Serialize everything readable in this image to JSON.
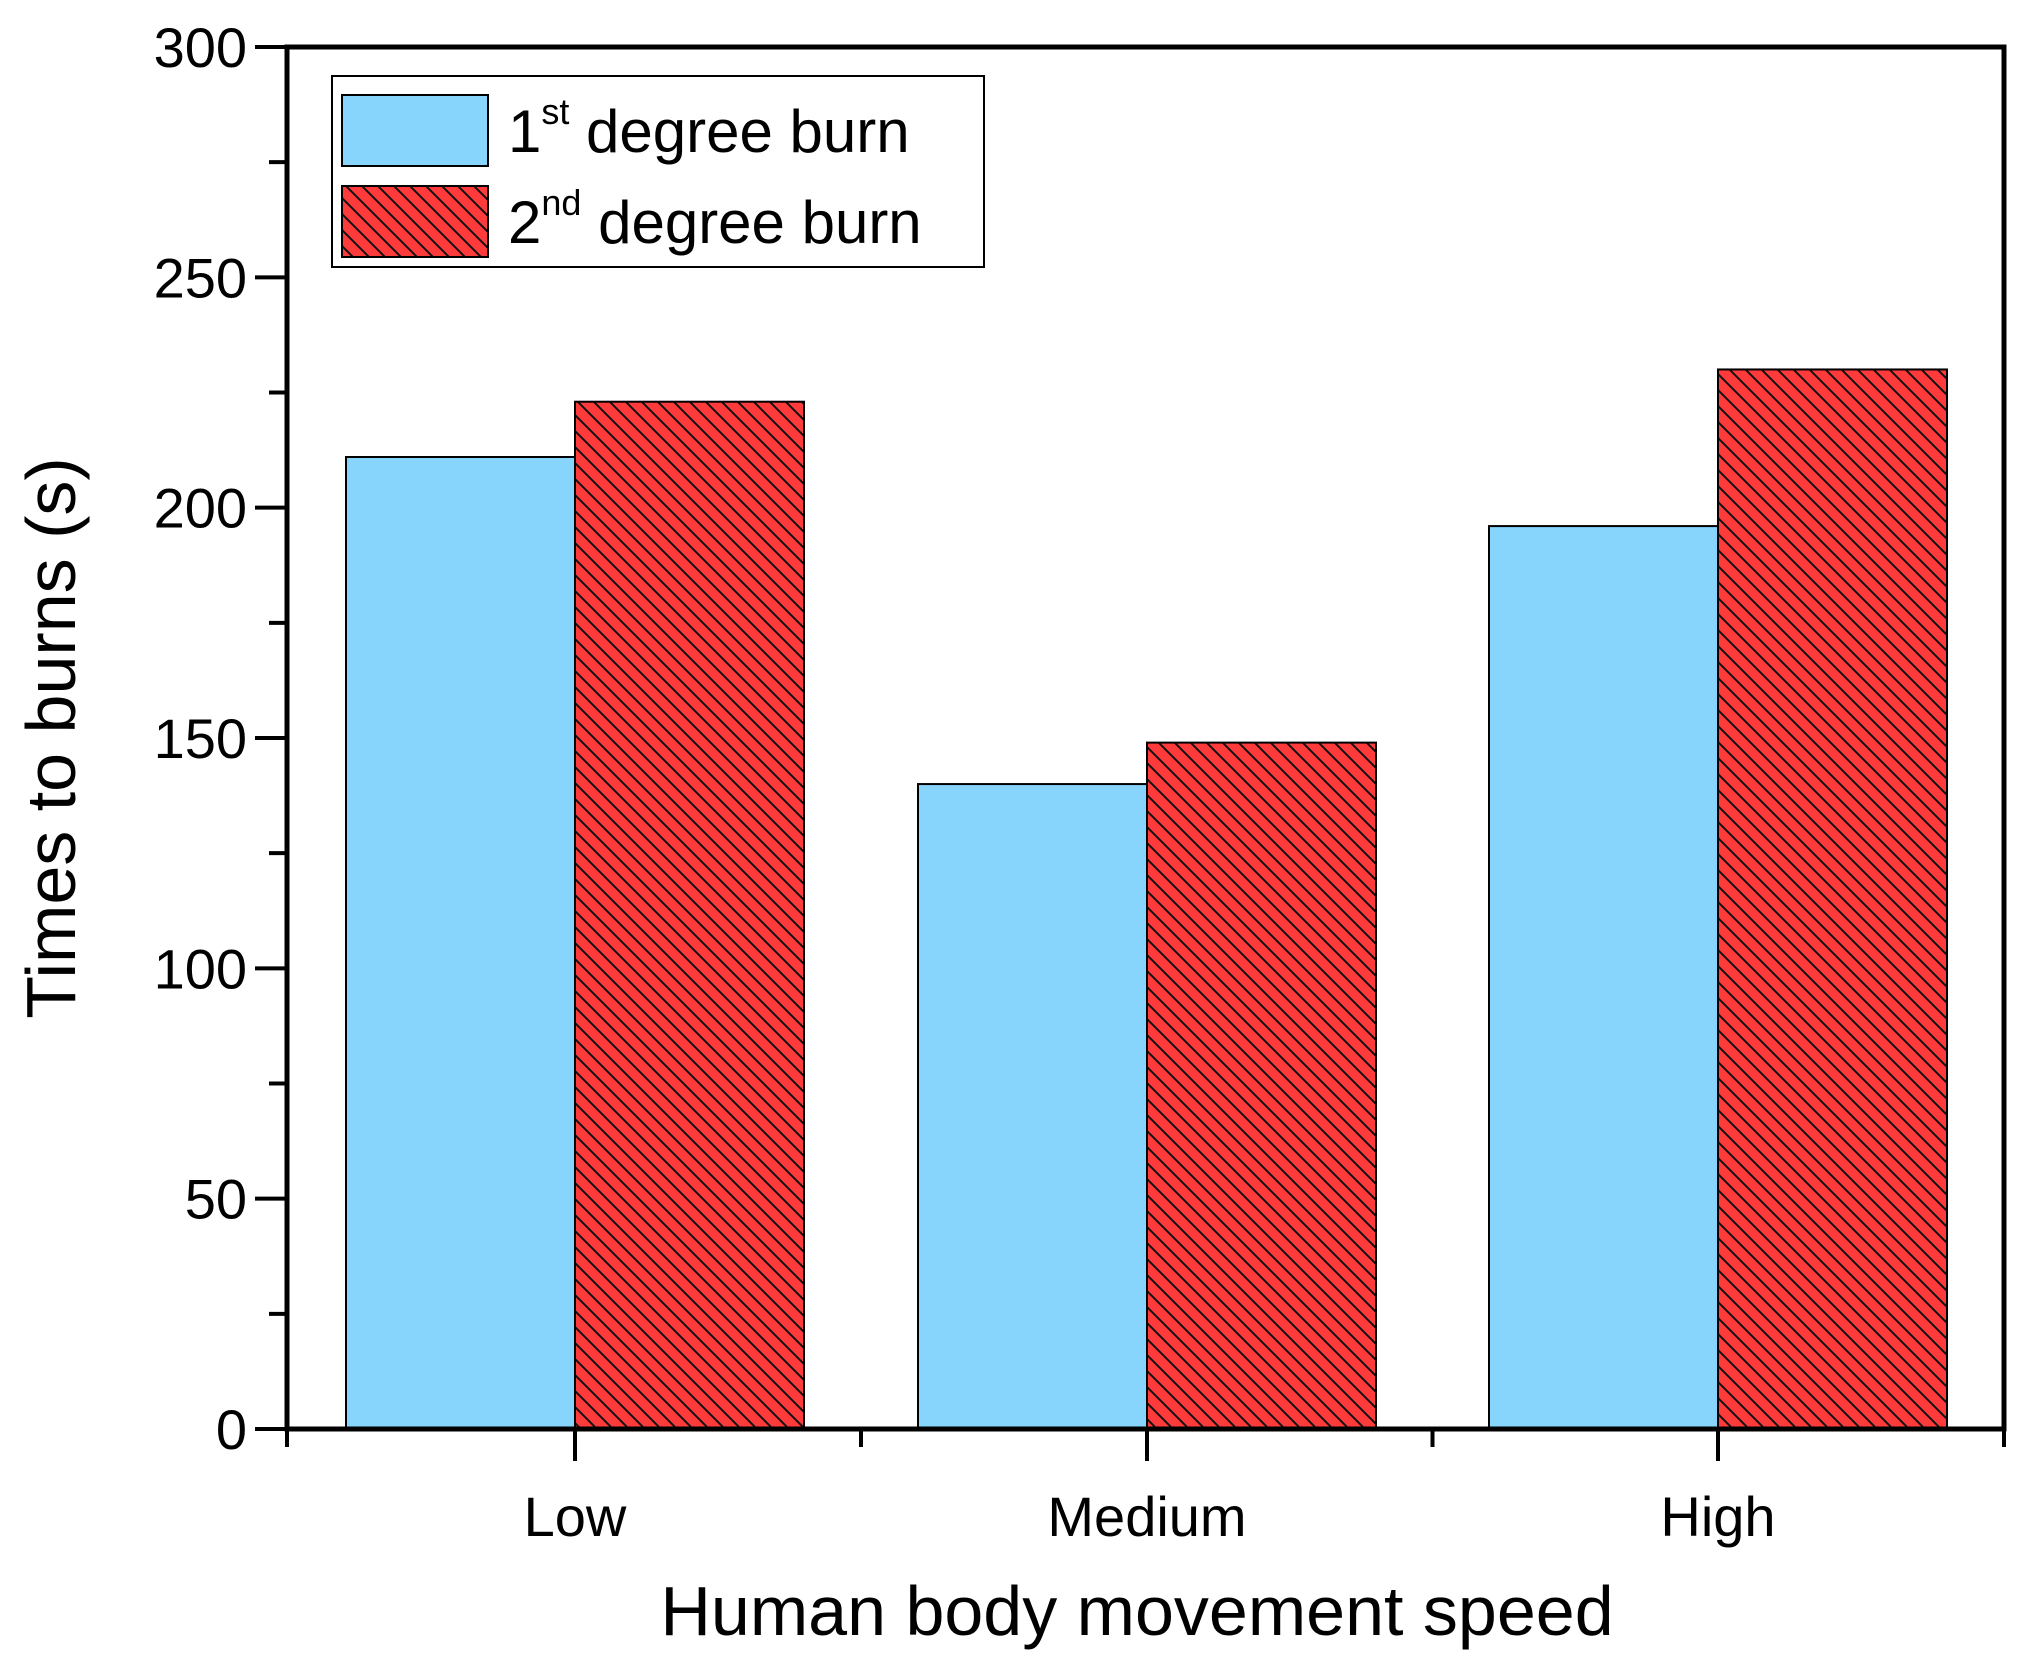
{
  "chart_data": {
    "type": "bar",
    "title": "",
    "xlabel": "Human body movement speed",
    "ylabel": "Times to burns (s)",
    "categories": [
      "Low",
      "Medium",
      "High"
    ],
    "ylim": [
      0,
      300
    ],
    "yticks": [
      0,
      50,
      100,
      150,
      200,
      250,
      300
    ],
    "ytick_labels": [
      "0",
      "50",
      "100",
      "150",
      "200",
      "250",
      "300"
    ],
    "grid": false,
    "legend_position": "top-left",
    "series": [
      {
        "name": "1st degree burn",
        "label_main": "1",
        "label_sup": "st",
        "label_rest": " degree burn",
        "color": "#87D5FD",
        "pattern": "solid",
        "values": [
          211,
          140,
          196
        ]
      },
      {
        "name": "2nd degree burn",
        "label_main": "2",
        "label_sup": "nd",
        "label_rest": " degree burn",
        "color": "#FF3A3A",
        "pattern": "diagonal-hatch",
        "values": [
          223,
          149,
          230
        ]
      }
    ]
  }
}
